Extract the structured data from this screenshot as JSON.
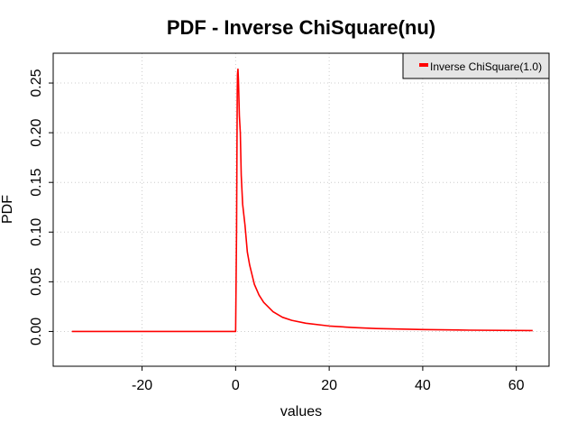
{
  "chart_data": {
    "type": "line",
    "title": "PDF - Inverse ChiSquare(nu)",
    "xlabel": "values",
    "ylabel": "PDF",
    "xlim": [
      -39,
      67
    ],
    "ylim": [
      -0.035,
      0.28
    ],
    "xticks": [
      -20,
      0,
      20,
      40,
      60
    ],
    "xtick_labels": [
      "-20",
      "0",
      "20",
      "40",
      "60"
    ],
    "yticks": [
      0.0,
      0.05,
      0.1,
      0.15,
      0.2,
      0.25
    ],
    "ytick_labels": [
      "0.00",
      "0.05",
      "0.10",
      "0.15",
      "0.20",
      "0.25"
    ],
    "grid": true,
    "legend_position": "top-right",
    "series": [
      {
        "name": "Inverse ChiSquare(1.0)",
        "color": "#ff0000",
        "x": [
          -35,
          -20,
          -10,
          -1,
          0,
          0.2,
          0.3,
          0.35,
          0.4,
          0.5,
          0.6,
          0.8,
          1,
          1.2,
          1.5,
          2,
          2.5,
          3,
          4,
          5,
          6,
          8,
          10,
          12,
          15,
          20,
          25,
          30,
          40,
          50,
          63.5
        ],
        "y": [
          0,
          0,
          0,
          0,
          0,
          0.102,
          0.2,
          0.24,
          0.259,
          0.264,
          0.253,
          0.217,
          0.2,
          0.157,
          0.128,
          0.107,
          0.08,
          0.0668,
          0.0475,
          0.0367,
          0.0293,
          0.0199,
          0.0143,
          0.0112,
          0.0083,
          0.0055,
          0.004,
          0.003,
          0.0019,
          0.0013,
          0.0009
        ]
      }
    ]
  }
}
